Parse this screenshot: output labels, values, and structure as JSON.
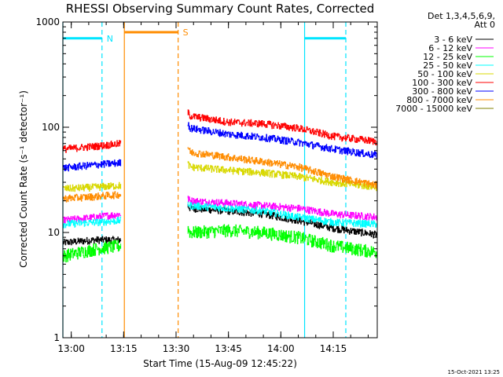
{
  "chart_data": {
    "type": "line",
    "title": "RHESSI Observing Summary Count Rates, Corrected",
    "xlabel": "Start Time (15-Aug-09 12:45:22)",
    "ylabel": "Corrected Count Rate (s⁻¹ detector⁻¹)",
    "yscale": "log",
    "ylim": [
      1,
      1000
    ],
    "xlim_minutes": [
      12.6,
      102.6
    ],
    "x_ticks": [
      {
        "label": "13:00",
        "minutes": 15
      },
      {
        "label": "13:15",
        "minutes": 30
      },
      {
        "label": "13:30",
        "minutes": 45
      },
      {
        "label": "13:45",
        "minutes": 60
      },
      {
        "label": "14:00",
        "minutes": 75
      },
      {
        "label": "14:15",
        "minutes": 90
      }
    ],
    "y_ticks": [
      {
        "label": "1",
        "value": 1
      },
      {
        "label": "10",
        "value": 10
      },
      {
        "label": "100",
        "value": 100
      },
      {
        "label": "1000",
        "value": 1000
      }
    ],
    "legend_header": [
      "Det 1,3,4,5,6,9,",
      "Att 0"
    ],
    "legend_position": "right",
    "grid": false,
    "segments": [
      [
        12.6,
        29.2
      ],
      [
        48.3,
        102.6
      ]
    ],
    "gap": [
      29.8,
      45.6
    ],
    "series": [
      {
        "name": "3 - 6 keV",
        "color": "#000000",
        "x": [
          12.6,
          22,
          29.2,
          48.3,
          49,
          60,
          70,
          80,
          90,
          102.6
        ],
        "y": [
          8,
          8.5,
          8.5,
          18,
          17,
          16,
          15,
          13,
          11,
          9.5
        ]
      },
      {
        "name": "6 - 12 keV",
        "color": "#ff00ff",
        "x": [
          12.6,
          22,
          29.2,
          48.3,
          49,
          60,
          70,
          80,
          90,
          102.6
        ],
        "y": [
          13,
          14,
          15,
          21,
          20,
          19,
          18,
          17,
          15,
          14
        ]
      },
      {
        "name": "12 - 25 keV",
        "color": "#00ff00",
        "x": [
          12.6,
          22,
          29.2,
          48.3,
          49,
          60,
          70,
          80,
          90,
          102.6
        ],
        "y": [
          6,
          7,
          7.5,
          11,
          10,
          10.5,
          10,
          9,
          7.5,
          6.5
        ]
      },
      {
        "name": "25 - 50 keV",
        "color": "#00ffff",
        "x": [
          12.6,
          22,
          29.2,
          48.3,
          49,
          60,
          70,
          80,
          90,
          102.6
        ],
        "y": [
          12,
          12.5,
          13,
          19,
          18,
          17,
          16,
          14,
          12.5,
          12
        ]
      },
      {
        "name": "50 - 100 keV",
        "color": "#d8d800",
        "x": [
          12.6,
          22,
          29.2,
          48.3,
          49,
          60,
          70,
          80,
          90,
          102.6
        ],
        "y": [
          26,
          27,
          28,
          45,
          42,
          39,
          37,
          34,
          30,
          27
        ]
      },
      {
        "name": "100 - 300 keV",
        "color": "#ff0000",
        "x": [
          12.6,
          22,
          29.2,
          48.3,
          49,
          60,
          70,
          80,
          90,
          102.6
        ],
        "y": [
          62,
          66,
          70,
          140,
          128,
          112,
          108,
          98,
          82,
          73
        ]
      },
      {
        "name": "300 - 800 keV",
        "color": "#0000ff",
        "x": [
          12.6,
          22,
          29.2,
          48.3,
          49,
          60,
          70,
          80,
          90,
          102.6
        ],
        "y": [
          41,
          44,
          46,
          110,
          98,
          86,
          80,
          72,
          62,
          54
        ]
      },
      {
        "name": "800 - 7000 keV",
        "color": "#ff8c00",
        "x": [
          12.6,
          22,
          29.2,
          48.3,
          49,
          60,
          70,
          80,
          90,
          102.6
        ],
        "y": [
          21,
          22,
          23,
          66,
          58,
          52,
          47,
          42,
          34,
          28
        ]
      },
      {
        "name": "7000 - 15000 keV",
        "color": "#808000",
        "x": [],
        "y": []
      }
    ],
    "flags": [
      {
        "label": "N",
        "color": "#00e5ff",
        "start": 12.6,
        "end": 23.8,
        "solid_line_at": 12.6,
        "dashed_line_at": 23.8,
        "level": 700
      },
      {
        "label": "S",
        "color": "#ff8c00",
        "start": 30.2,
        "end": 45.6,
        "solid_line_at": 30.2,
        "dashed_line_at": 45.6,
        "level": 800
      },
      {
        "label": "",
        "color": "#00e5ff",
        "start": 81.8,
        "end": 93.6,
        "solid_line_at": 81.8,
        "dashed_line_at": 93.6,
        "level": 700
      }
    ],
    "footer_date": "15-Oct-2021 13:25"
  }
}
